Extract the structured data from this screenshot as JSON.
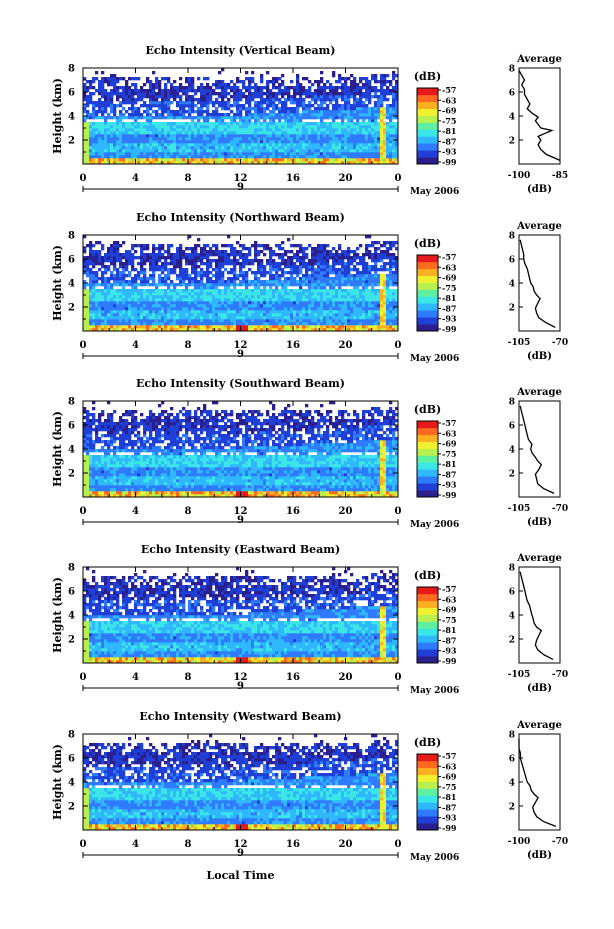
{
  "colorbar": {
    "unit_label": "(dB)",
    "tick_labels": [
      "-57",
      "-63",
      "-69",
      "-75",
      "-81",
      "-87",
      "-93",
      "-99"
    ],
    "colors": [
      "#2a1f8c",
      "#1f3fd6",
      "#2f7bff",
      "#2fb8ff",
      "#3ce6e6",
      "#5cf0a0",
      "#b8f050",
      "#f0f030",
      "#ffb020",
      "#ff6a20",
      "#e61a1a"
    ]
  },
  "x_axis": {
    "tick_labels": [
      "0",
      "4",
      "8",
      "12",
      "16",
      "20",
      "0"
    ],
    "day_label": "9",
    "date_label": "May 2006",
    "xlabel": "Local Time"
  },
  "chart_data": [
    {
      "type": "heatmap",
      "title": "Echo Intensity (Vertical Beam)",
      "ylabel": "Height (km)",
      "x_hours": [
        0,
        24
      ],
      "xticks": [
        0,
        4,
        8,
        12,
        16,
        20,
        24
      ],
      "ylim": [
        0,
        8
      ],
      "yticks": [
        "2",
        "4",
        "6",
        "8"
      ],
      "zlim_db": [
        -99,
        -57
      ],
      "average_profile": {
        "title": "Average",
        "xlabel": "(dB)",
        "xticks": [
          "-100",
          "-85"
        ],
        "xlim": [
          -100,
          -85
        ],
        "ylim": [
          0,
          8
        ],
        "yticks": [
          "2",
          "4",
          "6",
          "8"
        ],
        "height_km": [
          0.3,
          0.8,
          1.2,
          1.6,
          2.0,
          2.3,
          2.6,
          2.8,
          3.0,
          3.3,
          3.6,
          3.9,
          4.2,
          4.6,
          5.0,
          5.4,
          5.8,
          6.2,
          6.6,
          7.0,
          7.4,
          7.8
        ],
        "db": [
          -85,
          -90,
          -92,
          -93,
          -92,
          -93,
          -90,
          -88,
          -92,
          -93,
          -94,
          -93,
          -95,
          -97,
          -96,
          -97,
          -98,
          -98,
          -99,
          -98,
          -99,
          -100
        ]
      }
    },
    {
      "type": "heatmap",
      "title": "Echo Intensity (Northward Beam)",
      "ylabel": "Height (km)",
      "x_hours": [
        0,
        24
      ],
      "xticks": [
        0,
        4,
        8,
        12,
        16,
        20,
        24
      ],
      "ylim": [
        0,
        8
      ],
      "yticks": [
        "2",
        "4",
        "6",
        "8"
      ],
      "zlim_db": [
        -99,
        -57
      ],
      "average_profile": {
        "title": "Average",
        "xlabel": "(dB)",
        "xticks": [
          "-105",
          "-70"
        ],
        "xlim": [
          -105,
          -70
        ],
        "ylim": [
          0,
          8
        ],
        "yticks": [
          "2",
          "4",
          "6",
          "8"
        ],
        "height_km": [
          0.3,
          0.7,
          1.1,
          1.5,
          1.9,
          2.3,
          2.7,
          3.0,
          3.3,
          3.7,
          4.0,
          4.4,
          4.8,
          5.2,
          5.6,
          6.0,
          6.4,
          6.8,
          7.2,
          7.6
        ],
        "db": [
          -74,
          -82,
          -88,
          -90,
          -91,
          -89,
          -87,
          -90,
          -92,
          -93,
          -95,
          -96,
          -97,
          -98,
          -100,
          -101,
          -101,
          -102,
          -103,
          -104
        ]
      }
    },
    {
      "type": "heatmap",
      "title": "Echo Intensity (Southward Beam)",
      "ylabel": "Height (km)",
      "x_hours": [
        0,
        24
      ],
      "xticks": [
        0,
        4,
        8,
        12,
        16,
        20,
        24
      ],
      "ylim": [
        0,
        8
      ],
      "yticks": [
        "2",
        "4",
        "6",
        "8"
      ],
      "zlim_db": [
        -99,
        -57
      ],
      "average_profile": {
        "title": "Average",
        "xlabel": "(dB)",
        "xticks": [
          "-105",
          "-70"
        ],
        "xlim": [
          -105,
          -70
        ],
        "ylim": [
          0,
          8
        ],
        "yticks": [
          "2",
          "4",
          "6",
          "8"
        ],
        "height_km": [
          0.3,
          0.7,
          1.1,
          1.5,
          1.9,
          2.3,
          2.7,
          3.0,
          3.3,
          3.7,
          4.0,
          4.4,
          4.8,
          5.2,
          5.6,
          6.0,
          6.4,
          6.8,
          7.2,
          7.6
        ],
        "db": [
          -75,
          -84,
          -89,
          -90,
          -91,
          -88,
          -86,
          -89,
          -91,
          -94,
          -95,
          -94,
          -97,
          -98,
          -99,
          -100,
          -101,
          -102,
          -103,
          -104
        ]
      }
    },
    {
      "type": "heatmap",
      "title": "Echo Intensity (Eastward Beam)",
      "ylabel": "Height (km)",
      "x_hours": [
        0,
        24
      ],
      "xticks": [
        0,
        4,
        8,
        12,
        16,
        20,
        24
      ],
      "ylim": [
        0,
        8
      ],
      "yticks": [
        "2",
        "4",
        "6",
        "8"
      ],
      "zlim_db": [
        -99,
        -57
      ],
      "average_profile": {
        "title": "Average",
        "xlabel": "(dB)",
        "xticks": [
          "-105",
          "-70"
        ],
        "xlim": [
          -105,
          -70
        ],
        "ylim": [
          0,
          8
        ],
        "yticks": [
          "2",
          "4",
          "6",
          "8"
        ],
        "height_km": [
          0.3,
          0.7,
          1.1,
          1.5,
          1.9,
          2.3,
          2.7,
          3.0,
          3.3,
          3.7,
          4.0,
          4.4,
          4.8,
          5.2,
          5.6,
          6.0,
          6.4,
          6.8,
          7.2,
          7.6
        ],
        "db": [
          -76,
          -84,
          -89,
          -91,
          -90,
          -88,
          -86,
          -90,
          -92,
          -93,
          -94,
          -95,
          -96,
          -98,
          -99,
          -100,
          -101,
          -102,
          -103,
          -104
        ]
      }
    },
    {
      "type": "heatmap",
      "title": "Echo Intensity (Westward Beam)",
      "ylabel": "Height (km)",
      "x_hours": [
        0,
        24
      ],
      "xticks": [
        0,
        4,
        8,
        12,
        16,
        20,
        24
      ],
      "ylim": [
        0,
        8
      ],
      "yticks": [
        "2",
        "4",
        "6",
        "8"
      ],
      "zlim_db": [
        -99,
        -57
      ],
      "average_profile": {
        "title": "Average",
        "xlabel": "(dB)",
        "xticks": [
          "-100",
          "-70"
        ],
        "xlim": [
          -100,
          -70
        ],
        "ylim": [
          0,
          8
        ],
        "yticks": [
          "2",
          "4",
          "6",
          "8"
        ],
        "height_km": [
          0.3,
          0.7,
          1.1,
          1.5,
          1.9,
          2.3,
          2.7,
          3.0,
          3.3,
          3.7,
          4.0,
          4.4,
          4.8,
          5.2,
          5.6,
          6.0,
          6.4,
          6.8,
          7.2,
          7.6
        ],
        "db": [
          -73,
          -82,
          -87,
          -89,
          -90,
          -88,
          -86,
          -89,
          -91,
          -92,
          -94,
          -95,
          -96,
          -97,
          -98,
          -99,
          -99,
          -100,
          -100,
          -100
        ]
      }
    }
  ]
}
